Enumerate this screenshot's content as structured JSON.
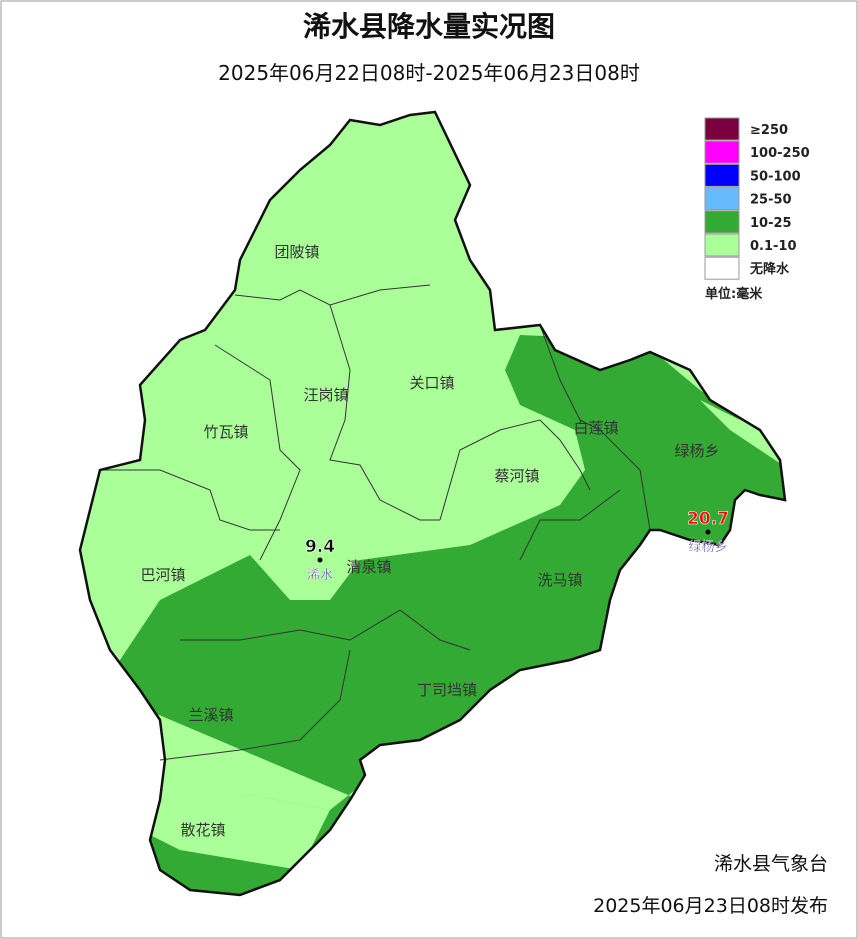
{
  "title": "浠水县降水量实况图",
  "subtitle": "2025年06月22日08时-2025年06月23日08时",
  "legend": {
    "items": [
      {
        "label": "≥250",
        "color": "#7a0040"
      },
      {
        "label": "100-250",
        "color": "#ff00ff"
      },
      {
        "label": "50-100",
        "color": "#0000ff"
      },
      {
        "label": "25-50",
        "color": "#66bbff"
      },
      {
        "label": "10-25",
        "color": "#33aa33"
      },
      {
        "label": "0.1-10",
        "color": "#aaff99"
      },
      {
        "label": "无降水",
        "color": "#ffffff"
      }
    ],
    "unit": "单位:毫米"
  },
  "towns": [
    "团陂镇",
    "汪岗镇",
    "关口镇",
    "竹瓦镇",
    "蔡河镇",
    "白莲镇",
    "绿杨乡",
    "巴河镇",
    "清泉镇",
    "洗马镇",
    "丁司垱镇",
    "兰溪镇",
    "散花镇"
  ],
  "stations": [
    {
      "name": "浠水",
      "value": 9.4,
      "color": "#000000"
    },
    {
      "name": "绿杨乡",
      "value": 20.7,
      "color": "#ff0000"
    }
  ],
  "footer": {
    "agency": "浠水县气象台",
    "issued": "2025年06月23日08时发布"
  }
}
